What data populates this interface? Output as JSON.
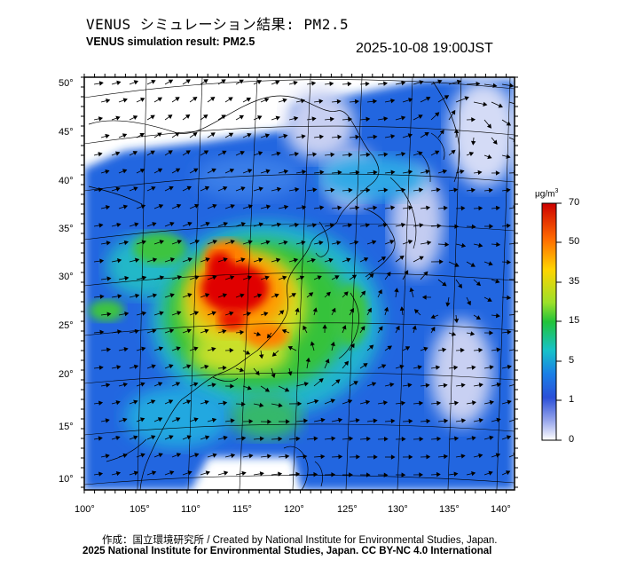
{
  "title_ja": "VENUS シミュレーション結果: PM2.5",
  "title_en": "VENUS simulation result: PM2.5",
  "timestamp": "2025-10-08 19:00JST",
  "lat_labels": [
    "50°",
    "45°",
    "40°",
    "35°",
    "30°",
    "25°",
    "20°",
    "15°",
    "10°"
  ],
  "lon_labels": [
    "100°",
    "105°",
    "110°",
    "115°",
    "120°",
    "125°",
    "130°",
    "135°",
    "140°"
  ],
  "colorbar": {
    "unit": "μg/m",
    "unit_sup": "3",
    "ticks": [
      "70",
      "50",
      "35",
      "15",
      "5",
      "1",
      "0"
    ],
    "colors": [
      "#d60000",
      "#ff7a00",
      "#ffd400",
      "#3ac93a",
      "#1fb8c8",
      "#1e5adc",
      "#c8cdf0",
      "#ffffff"
    ]
  },
  "footer_credit": "作成：国立環境研究所 / Created by National Institute for Environmental Studies, Japan.",
  "footer_copyright": "2025 National Institute for Environmental Studies, Japan. CC BY-NC 4.0 International"
}
